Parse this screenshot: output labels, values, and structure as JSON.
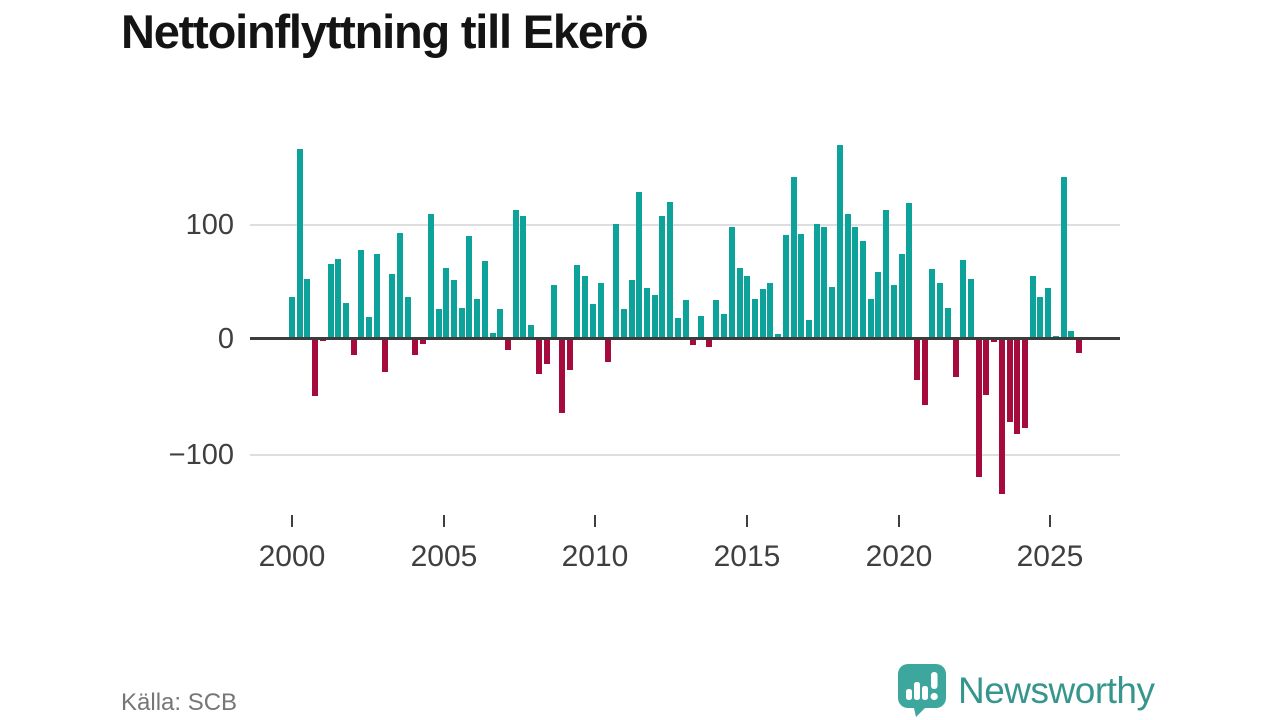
{
  "title": "Nettoinflyttning till Ekerö",
  "source": "Källa: SCB",
  "branding": {
    "logo_text": "Newsworthy",
    "logo_icon": "newsworthy-chart-bubble-icon"
  },
  "colors": {
    "positive_bar": "#0da39a",
    "negative_bar": "#a60b3e",
    "axis": "#3c3c3c",
    "gridline": "#dedede",
    "tick_text": "#3f3f3f",
    "title_text": "#141414",
    "source_text": "#767676",
    "logo_teal": "#36968d"
  },
  "chart_data": {
    "type": "bar",
    "title": "Nettoinflyttning till Ekerö",
    "xlabel": "",
    "ylabel": "",
    "grid": "horizontal gridlines at -100 and 100, dark zero baseline",
    "legend": "none",
    "ylim": [
      -150,
      185
    ],
    "y_axis": {
      "tick_labels": [
        "100",
        "0",
        "−100"
      ],
      "tick_values": [
        100,
        0,
        -100
      ]
    },
    "x_axis": {
      "tick_labels": [
        "2000",
        "2005",
        "2010",
        "2015",
        "2020",
        "2025"
      ],
      "period": "quarter",
      "first_bar": "2000 Q1",
      "last_bar": "2025 Q3"
    },
    "values": [
      37,
      167,
      53,
      -50,
      -2,
      66,
      70,
      32,
      -14,
      78,
      19,
      75,
      -29,
      57,
      93,
      37,
      -14,
      -4,
      110,
      26,
      62,
      52,
      27,
      90,
      35,
      68,
      5,
      26,
      -10,
      113,
      108,
      12,
      -31,
      -22,
      47,
      -65,
      -27,
      65,
      55,
      31,
      49,
      -20,
      101,
      26,
      52,
      129,
      45,
      39,
      108,
      120,
      18,
      34,
      -5,
      20,
      -7,
      34,
      22,
      98,
      62,
      55,
      35,
      44,
      49,
      4,
      91,
      142,
      92,
      17,
      101,
      98,
      46,
      170,
      110,
      98,
      86,
      35,
      59,
      113,
      47,
      75,
      119,
      -36,
      -58,
      61,
      49,
      27,
      -33,
      69,
      53,
      -121,
      -49,
      -3,
      -136,
      -73,
      -83,
      -78,
      55,
      37,
      45,
      3,
      142,
      7,
      -12
    ]
  }
}
